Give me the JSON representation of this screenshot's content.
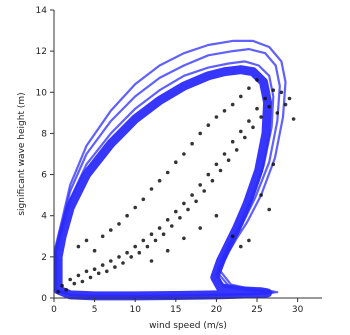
{
  "chart_data": {
    "type": "scatter",
    "xlabel": "wind speed (m/s)",
    "ylabel": "significant wave height (m)",
    "xlim": [
      0,
      33
    ],
    "ylim": [
      0,
      14
    ],
    "xticks": [
      0,
      5,
      10,
      15,
      20,
      25,
      30
    ],
    "yticks": [
      0,
      2,
      4,
      6,
      8,
      10,
      12,
      14
    ],
    "grid": false,
    "colors": {
      "points": "#111111",
      "contours": "#2b2bff",
      "axis": "#333333"
    },
    "points": [
      {
        "x": 0.5,
        "y": 0.3
      },
      {
        "x": 1.0,
        "y": 0.6
      },
      {
        "x": 1.5,
        "y": 0.4
      },
      {
        "x": 2.0,
        "y": 0.9
      },
      {
        "x": 2.5,
        "y": 0.7
      },
      {
        "x": 3.0,
        "y": 1.1
      },
      {
        "x": 3.5,
        "y": 0.8
      },
      {
        "x": 4.0,
        "y": 1.3
      },
      {
        "x": 4.5,
        "y": 1.0
      },
      {
        "x": 5.0,
        "y": 1.4
      },
      {
        "x": 5.5,
        "y": 1.2
      },
      {
        "x": 6.0,
        "y": 1.6
      },
      {
        "x": 6.5,
        "y": 1.3
      },
      {
        "x": 7.0,
        "y": 1.8
      },
      {
        "x": 7.5,
        "y": 1.5
      },
      {
        "x": 8.0,
        "y": 2.0
      },
      {
        "x": 8.5,
        "y": 1.7
      },
      {
        "x": 9.0,
        "y": 2.2
      },
      {
        "x": 9.5,
        "y": 2.0
      },
      {
        "x": 10.0,
        "y": 2.5
      },
      {
        "x": 10.5,
        "y": 2.2
      },
      {
        "x": 11.0,
        "y": 2.8
      },
      {
        "x": 11.5,
        "y": 2.5
      },
      {
        "x": 12.0,
        "y": 3.1
      },
      {
        "x": 12.5,
        "y": 2.8
      },
      {
        "x": 13.0,
        "y": 3.4
      },
      {
        "x": 13.5,
        "y": 3.1
      },
      {
        "x": 14.0,
        "y": 3.8
      },
      {
        "x": 14.5,
        "y": 3.5
      },
      {
        "x": 15.0,
        "y": 4.2
      },
      {
        "x": 15.5,
        "y": 3.9
      },
      {
        "x": 16.0,
        "y": 4.6
      },
      {
        "x": 16.5,
        "y": 4.3
      },
      {
        "x": 17.0,
        "y": 5.0
      },
      {
        "x": 17.5,
        "y": 4.7
      },
      {
        "x": 18.0,
        "y": 5.5
      },
      {
        "x": 18.5,
        "y": 5.2
      },
      {
        "x": 19.0,
        "y": 6.0
      },
      {
        "x": 19.5,
        "y": 5.7
      },
      {
        "x": 20.0,
        "y": 6.5
      },
      {
        "x": 20.5,
        "y": 6.2
      },
      {
        "x": 21.0,
        "y": 7.0
      },
      {
        "x": 21.5,
        "y": 6.7
      },
      {
        "x": 22.0,
        "y": 7.6
      },
      {
        "x": 22.5,
        "y": 7.2
      },
      {
        "x": 23.0,
        "y": 8.1
      },
      {
        "x": 23.5,
        "y": 7.8
      },
      {
        "x": 24.0,
        "y": 8.6
      },
      {
        "x": 24.5,
        "y": 8.3
      },
      {
        "x": 25.0,
        "y": 9.2
      },
      {
        "x": 25.5,
        "y": 8.8
      },
      {
        "x": 26.0,
        "y": 9.7
      },
      {
        "x": 26.5,
        "y": 9.3
      },
      {
        "x": 27.0,
        "y": 10.1
      },
      {
        "x": 27.5,
        "y": 9.0
      },
      {
        "x": 28.0,
        "y": 10.0
      },
      {
        "x": 28.5,
        "y": 9.4
      },
      {
        "x": 29.0,
        "y": 9.7
      },
      {
        "x": 29.5,
        "y": 8.7
      },
      {
        "x": 3.0,
        "y": 2.5
      },
      {
        "x": 4.0,
        "y": 2.8
      },
      {
        "x": 5.0,
        "y": 2.3
      },
      {
        "x": 6.0,
        "y": 3.0
      },
      {
        "x": 7.0,
        "y": 3.3
      },
      {
        "x": 8.0,
        "y": 3.6
      },
      {
        "x": 9.0,
        "y": 4.0
      },
      {
        "x": 10.0,
        "y": 4.4
      },
      {
        "x": 11.0,
        "y": 4.8
      },
      {
        "x": 12.0,
        "y": 5.3
      },
      {
        "x": 13.0,
        "y": 5.7
      },
      {
        "x": 14.0,
        "y": 6.1
      },
      {
        "x": 15.0,
        "y": 6.6
      },
      {
        "x": 16.0,
        "y": 7.0
      },
      {
        "x": 17.0,
        "y": 7.5
      },
      {
        "x": 18.0,
        "y": 8.0
      },
      {
        "x": 19.0,
        "y": 8.4
      },
      {
        "x": 20.0,
        "y": 8.8
      },
      {
        "x": 21.0,
        "y": 9.1
      },
      {
        "x": 22.0,
        "y": 9.4
      },
      {
        "x": 23.0,
        "y": 9.8
      },
      {
        "x": 24.0,
        "y": 10.2
      },
      {
        "x": 25.0,
        "y": 10.6
      },
      {
        "x": 12.0,
        "y": 1.8
      },
      {
        "x": 14.0,
        "y": 2.3
      },
      {
        "x": 16.0,
        "y": 2.9
      },
      {
        "x": 18.0,
        "y": 3.4
      },
      {
        "x": 20.0,
        "y": 4.0
      },
      {
        "x": 22.0,
        "y": 3.0
      },
      {
        "x": 24.0,
        "y": 2.8
      },
      {
        "x": 23.0,
        "y": 2.5
      },
      {
        "x": 26.5,
        "y": 4.3
      },
      {
        "x": 25.5,
        "y": 5.0
      },
      {
        "x": 27.0,
        "y": 6.5
      }
    ],
    "contours": [
      {
        "x": [
          0.5,
          1,
          2,
          4,
          7,
          10,
          13,
          16,
          19,
          21,
          23,
          24.5,
          25.8,
          26.3,
          26.1,
          25.2,
          23.8,
          22.5,
          21.5,
          20.5,
          19.8,
          20.5,
          23,
          25.5,
          26.3,
          24,
          20,
          15,
          10,
          5,
          2,
          0.5,
          0.5
        ],
        "y": [
          2.0,
          3.0,
          4.4,
          6.0,
          7.5,
          8.7,
          9.6,
          10.3,
          10.8,
          11.0,
          11.1,
          11.0,
          10.5,
          9.5,
          8.0,
          6.2,
          4.6,
          3.4,
          2.6,
          1.8,
          1.0,
          0.5,
          0.35,
          0.3,
          0.25,
          0.2,
          0.15,
          0.12,
          0.1,
          0.1,
          0.15,
          0.4,
          2.0
        ]
      },
      {
        "x": [
          0.3,
          1,
          2,
          4,
          7,
          10,
          13,
          16,
          19,
          21.5,
          23.5,
          25.2,
          26.5,
          27,
          26.8,
          25.8,
          24.3,
          22.8,
          21.7,
          20.7,
          20.0,
          21.0,
          23.5,
          25.8,
          26.6,
          24.5,
          20,
          15,
          10,
          5,
          2,
          0.3,
          0.3
        ],
        "y": [
          2.2,
          3.3,
          4.8,
          6.5,
          8.0,
          9.2,
          10.1,
          10.8,
          11.2,
          11.4,
          11.5,
          11.3,
          10.8,
          9.8,
          8.3,
          6.4,
          4.8,
          3.5,
          2.7,
          1.9,
          1.1,
          0.55,
          0.38,
          0.32,
          0.26,
          0.2,
          0.15,
          0.12,
          0.1,
          0.1,
          0.15,
          0.4,
          2.2
        ]
      },
      {
        "x": [
          0.2,
          1,
          2,
          4,
          7,
          10,
          13,
          16,
          19,
          22,
          24,
          26,
          27.3,
          27.8,
          27.5,
          26.5,
          24.8,
          23.2,
          22,
          21,
          20.2,
          21.5,
          24,
          26.2,
          27,
          25,
          20,
          15,
          10,
          5,
          2,
          0.2,
          0.2
        ],
        "y": [
          2.4,
          3.6,
          5.2,
          7.0,
          8.6,
          9.8,
          10.7,
          11.3,
          11.8,
          12.0,
          12.1,
          11.9,
          11.3,
          10.3,
          8.6,
          6.6,
          4.9,
          3.6,
          2.8,
          2.0,
          1.2,
          0.6,
          0.4,
          0.33,
          0.27,
          0.2,
          0.15,
          0.12,
          0.1,
          0.1,
          0.15,
          0.4,
          2.4
        ]
      },
      {
        "x": [
          0.2,
          1,
          2,
          4,
          7,
          10,
          13,
          16,
          19,
          22,
          24.5,
          26.5,
          28,
          28.5,
          28.2,
          27.2,
          25.5,
          23.8,
          22.5,
          21.3,
          20.5,
          21.8,
          24.5,
          26.5,
          27.5,
          25,
          20,
          15,
          10,
          5,
          2,
          0.2,
          0.2
        ],
        "y": [
          2.5,
          3.8,
          5.5,
          7.4,
          9.1,
          10.4,
          11.3,
          11.9,
          12.3,
          12.5,
          12.5,
          12.2,
          11.5,
          10.5,
          8.8,
          6.8,
          5.0,
          3.7,
          2.9,
          2.1,
          1.3,
          0.65,
          0.42,
          0.35,
          0.28,
          0.2,
          0.15,
          0.12,
          0.1,
          0.1,
          0.15,
          0.4,
          2.5
        ]
      }
    ]
  }
}
